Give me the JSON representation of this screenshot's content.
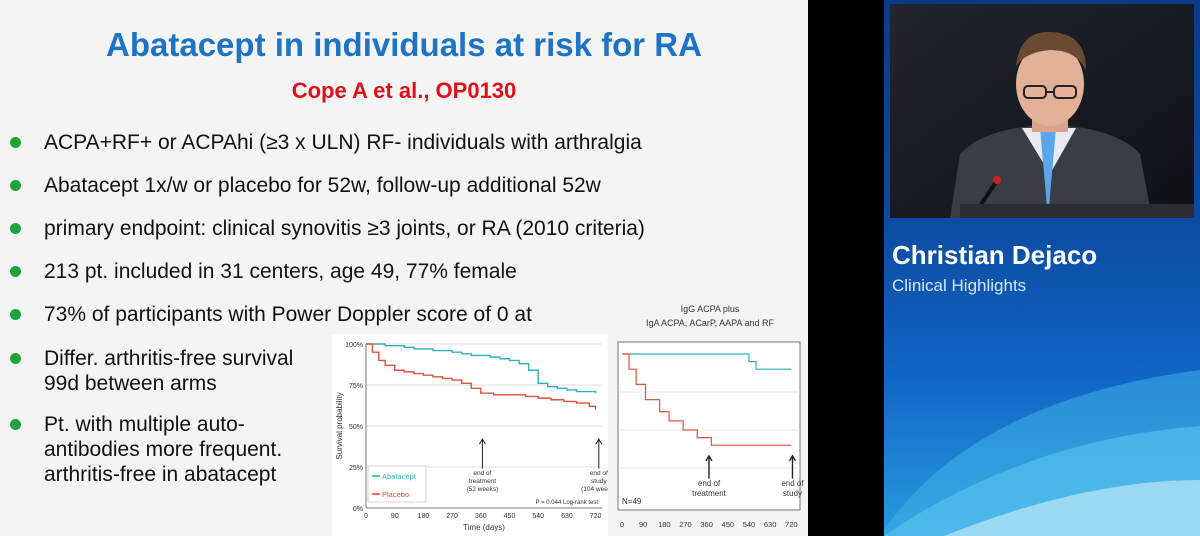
{
  "slide": {
    "title": "Abatacept in individuals at risk for RA",
    "subtitle": "Cope A et al., OP0130",
    "bullets": [
      {
        "text": "ACPA+RF+ or ACPAhi (≥3 x ULN) RF- individuals with arthralgia"
      },
      {
        "text": "Abatacept 1x/w or placebo for 52w, follow-up additional 52w"
      },
      {
        "text": "primary endpoint: clinical synovitis ≥3 joints, or RA (2010 criteria)"
      },
      {
        "text": "213 pt. included in 31 centers, age 49, 77% female"
      },
      {
        "text": "73% of participants with Power Doppler score of 0 at"
      },
      {
        "line1": "Differ. arthritis-free survival",
        "line2": "99d between arms"
      },
      {
        "line1": "Pt. with multiple auto-",
        "line2": "antibodies more frequent.",
        "line3": "arthritis-free in abatacept"
      }
    ]
  },
  "chart_data": [
    {
      "type": "line",
      "ylabel": "Survival probability",
      "xlabel": "Time (days)",
      "x_ticks": [
        0,
        90,
        180,
        270,
        360,
        450,
        540,
        630,
        720
      ],
      "y_ticks": [
        "0%",
        "25%",
        "50%",
        "75%",
        "100%"
      ],
      "xlim": [
        0,
        740
      ],
      "ylim": [
        0,
        100
      ],
      "series": [
        {
          "name": "Abatacept",
          "color": "#33aebc",
          "x": [
            0,
            30,
            60,
            90,
            120,
            150,
            180,
            210,
            240,
            270,
            300,
            330,
            360,
            390,
            420,
            450,
            480,
            510,
            540,
            570,
            600,
            630,
            660,
            690,
            720
          ],
          "y": [
            100,
            100,
            99,
            99,
            98,
            97,
            97,
            96,
            96,
            95,
            94,
            93,
            93,
            92,
            91,
            90,
            88,
            84,
            76,
            74,
            73,
            72,
            71,
            71,
            70
          ]
        },
        {
          "name": "Placebo",
          "color": "#e0533a",
          "x": [
            0,
            20,
            40,
            60,
            90,
            120,
            150,
            180,
            210,
            240,
            270,
            300,
            330,
            360,
            400,
            450,
            500,
            540,
            580,
            620,
            660,
            700,
            720
          ],
          "y": [
            100,
            95,
            90,
            87,
            84,
            83,
            82,
            81,
            80,
            79,
            78,
            76,
            73,
            70,
            69,
            69,
            68,
            67,
            66,
            65,
            64,
            62,
            60
          ]
        }
      ],
      "annotations": [
        {
          "x": 365,
          "line1": "end of",
          "line2": "treatment",
          "line3": "(52 weeks)"
        },
        {
          "x": 730,
          "line1": "end of",
          "line2": "study",
          "line3": "(104 weeks)"
        }
      ],
      "pvalue_text": "P = 0.044 Log-rank test"
    },
    {
      "type": "line",
      "title_line1": "IgG ACPA plus",
      "title_line2": "IgA ACPA, ACarP, AAPA and RF",
      "x_ticks": [
        0,
        90,
        180,
        270,
        360,
        450,
        540,
        630,
        720
      ],
      "xlim": [
        0,
        740
      ],
      "ylim": [
        0,
        100
      ],
      "series": [
        {
          "color": "#33aebc",
          "x": [
            0,
            200,
            400,
            540,
            570,
            660,
            720
          ],
          "y": [
            100,
            100,
            100,
            95,
            90,
            90,
            90
          ]
        },
        {
          "color": "#e0533a",
          "x": [
            0,
            30,
            60,
            100,
            160,
            200,
            260,
            320,
            380,
            720
          ],
          "y": [
            100,
            90,
            80,
            70,
            62,
            56,
            50,
            45,
            40,
            40
          ]
        }
      ],
      "annotations": [
        {
          "x": 370,
          "line1": "end of",
          "line2": "treatment"
        },
        {
          "x": 725,
          "line1": "end of",
          "line2": "study"
        }
      ],
      "n_text": "N=49"
    }
  ],
  "speaker": {
    "name": "Christian Dejaco",
    "role": "Clinical Highlights"
  }
}
